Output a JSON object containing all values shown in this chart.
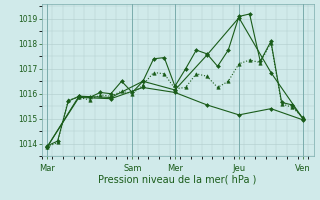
{
  "background_color": "#d0eaea",
  "grid_color": "#b0cccc",
  "line_color": "#1a5c1a",
  "xlabel": "Pression niveau de la mer( hPa )",
  "ylim": [
    1013.5,
    1019.6
  ],
  "yticks": [
    1014,
    1015,
    1016,
    1017,
    1018,
    1019
  ],
  "xlim": [
    0,
    25.5
  ],
  "day_labels": [
    "Mar",
    "Sam",
    "Mer",
    "Jeu",
    "Ven"
  ],
  "day_positions": [
    0.5,
    8.5,
    12.5,
    18.5,
    24.5
  ],
  "vline_positions": [
    0.5,
    8.5,
    12.5,
    18.5,
    24.5
  ],
  "series": [
    {
      "x": [
        0.5,
        1.5,
        2.5,
        3.5,
        4.5,
        5.5,
        6.5,
        7.5,
        8.5,
        9.5,
        10.5,
        11.5,
        12.5,
        13.5,
        14.5,
        15.5,
        16.5,
        17.5,
        18.5,
        19.5,
        20.5,
        21.5,
        22.5,
        23.5,
        24.5
      ],
      "y": [
        1013.9,
        1014.1,
        1015.7,
        1015.9,
        1015.85,
        1016.05,
        1016.0,
        1016.5,
        1016.05,
        1016.5,
        1017.4,
        1017.45,
        1016.3,
        1017.0,
        1017.75,
        1017.6,
        1017.1,
        1017.75,
        1019.1,
        1019.2,
        1017.3,
        1018.1,
        1015.65,
        1015.55,
        1015.0
      ],
      "linestyle": "-",
      "marker": "D",
      "markersize": 2.0
    },
    {
      "x": [
        0.5,
        1.5,
        2.5,
        3.5,
        4.5,
        5.5,
        6.5,
        7.5,
        8.5,
        9.5,
        10.5,
        11.5,
        12.5,
        13.5,
        14.5,
        15.5,
        16.5,
        17.5,
        18.5,
        19.5,
        20.5,
        21.5,
        22.5,
        23.5,
        24.5
      ],
      "y": [
        1013.85,
        1014.05,
        1015.75,
        1015.85,
        1015.75,
        1015.95,
        1015.9,
        1016.1,
        1016.0,
        1016.35,
        1016.85,
        1016.8,
        1016.2,
        1016.25,
        1016.8,
        1016.7,
        1016.25,
        1016.5,
        1017.2,
        1017.35,
        1017.25,
        1018.05,
        1015.6,
        1015.45,
        1015.05
      ],
      "linestyle": "dotted",
      "marker": "^",
      "markersize": 2.5
    },
    {
      "x": [
        0.5,
        3.5,
        6.5,
        9.5,
        12.5,
        15.5,
        18.5,
        21.5,
        24.5
      ],
      "y": [
        1013.85,
        1015.9,
        1015.85,
        1016.5,
        1016.15,
        1017.55,
        1019.05,
        1016.85,
        1015.0
      ],
      "linestyle": "-",
      "marker": "D",
      "markersize": 2.0
    },
    {
      "x": [
        0.5,
        3.5,
        6.5,
        9.5,
        12.5,
        15.5,
        18.5,
        21.5,
        24.5
      ],
      "y": [
        1013.85,
        1015.85,
        1015.8,
        1016.25,
        1016.05,
        1015.55,
        1015.15,
        1015.4,
        1014.95
      ],
      "linestyle": "-",
      "marker": "D",
      "markersize": 2.0
    }
  ]
}
